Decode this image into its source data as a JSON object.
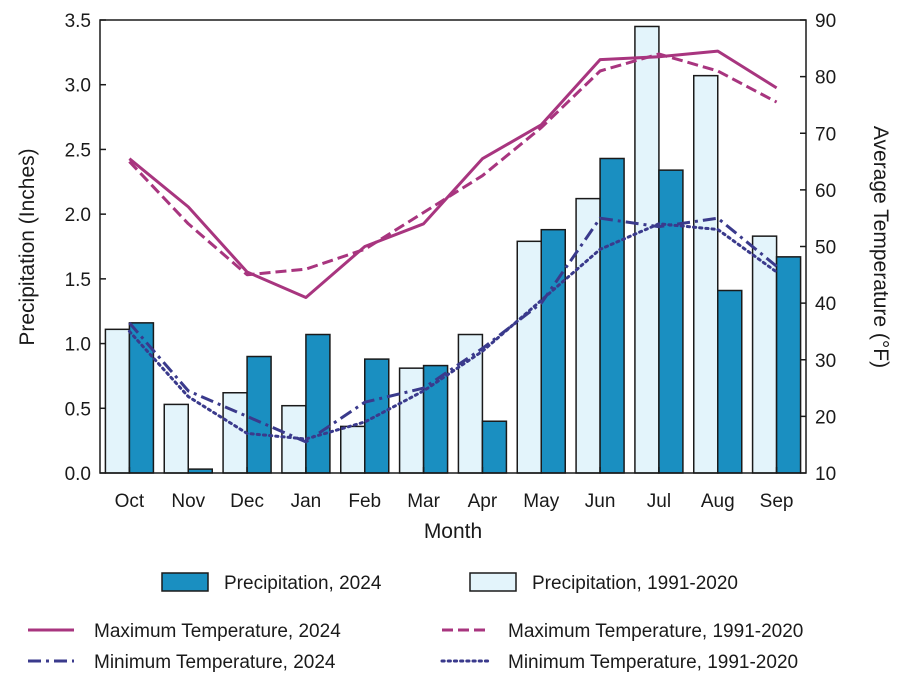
{
  "chart_data": {
    "type": "bar+line",
    "categories": [
      "Oct",
      "Nov",
      "Dec",
      "Jan",
      "Feb",
      "Mar",
      "Apr",
      "May",
      "Jun",
      "Jul",
      "Aug",
      "Sep"
    ],
    "xlabel": "Month",
    "ylabel_left": "Precipitation (Inches)",
    "ylabel_right": "Average Temperature (°F)",
    "ylim_left": [
      0,
      3.5
    ],
    "yticks_left": [
      "0.0",
      "0.5",
      "1.0",
      "1.5",
      "2.0",
      "2.5",
      "3.0",
      "3.5"
    ],
    "ylim_right": [
      10,
      90
    ],
    "yticks_right": [
      "10",
      "20",
      "30",
      "40",
      "50",
      "60",
      "70",
      "80",
      "90"
    ],
    "grid": false,
    "bars": [
      {
        "name": "Precipitation, 1991-2020",
        "color": "#e3f4fb",
        "values": [
          1.11,
          0.53,
          0.62,
          0.52,
          0.36,
          0.81,
          1.07,
          1.79,
          2.12,
          3.45,
          3.07,
          1.83
        ]
      },
      {
        "name": "Precipitation, 2024",
        "color": "#1a8fc1",
        "values": [
          1.16,
          0.03,
          0.9,
          1.07,
          0.88,
          0.83,
          0.4,
          1.88,
          2.43,
          2.34,
          1.41,
          1.67
        ]
      }
    ],
    "lines": [
      {
        "name": "Maximum Temperature, 2024",
        "color": "#a8357f",
        "style": "solid",
        "values": [
          65.5,
          57.0,
          45.5,
          41.0,
          50.0,
          54.0,
          65.5,
          71.5,
          83.0,
          83.5,
          84.5,
          78.0
        ]
      },
      {
        "name": "Maximum Temperature, 1991-2020",
        "color": "#a8357f",
        "style": "dashed",
        "values": [
          65.0,
          54.0,
          45.0,
          46.0,
          49.5,
          56.0,
          62.5,
          71.0,
          81.0,
          84.0,
          81.0,
          75.5
        ]
      },
      {
        "name": "Minimum Temperature, 2024",
        "color": "#3a3a8c",
        "style": "dashdot",
        "values": [
          36.5,
          24.5,
          20.0,
          15.5,
          22.5,
          25.0,
          32.0,
          40.0,
          55.0,
          53.5,
          55.0,
          46.5
        ]
      },
      {
        "name": "Minimum Temperature, 1991-2020",
        "color": "#3a3a8c",
        "style": "dotted",
        "values": [
          35.0,
          23.5,
          17.0,
          16.0,
          19.0,
          24.5,
          31.5,
          40.5,
          49.5,
          54.0,
          53.0,
          45.5
        ]
      }
    ],
    "legend": {
      "placement": "bottom",
      "entries": [
        "Precipitation, 2024",
        "Precipitation, 1991-2020",
        "Maximum Temperature, 2024",
        "Maximum Temperature, 1991-2020",
        "Minimum Temperature, 2024",
        "Minimum Temperature, 1991-2020"
      ]
    }
  }
}
